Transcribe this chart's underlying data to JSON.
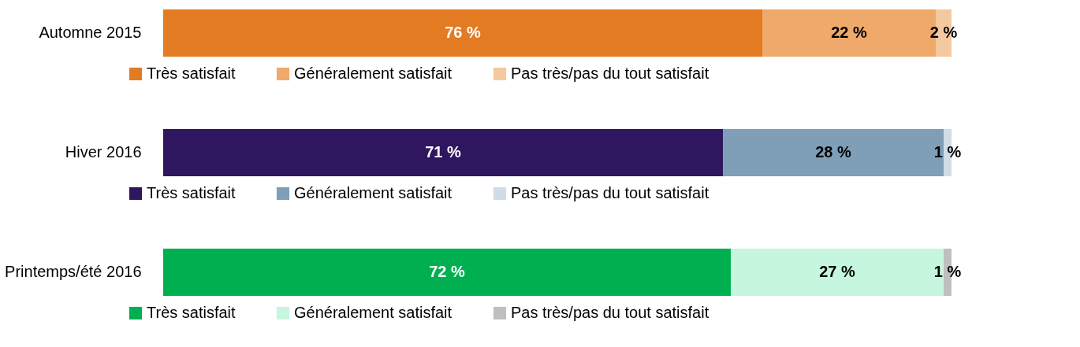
{
  "chart_data": [
    {
      "type": "bar",
      "orientation": "horizontal",
      "stacked": true,
      "categories": [
        "Automne 2015"
      ],
      "xlim": [
        0,
        100
      ],
      "tick_labels": "y",
      "legend": "bottom",
      "series": [
        {
          "name": "Très satisfait",
          "color": "#e37b22",
          "values": [
            76
          ],
          "value_labels": [
            "76 %"
          ]
        },
        {
          "name": "Généralement satisfait",
          "color": "#efa96b",
          "values": [
            22
          ],
          "value_labels": [
            "22 %"
          ]
        },
        {
          "name": "Pas très/pas du tout satisfait",
          "color": "#f5c9a0",
          "values": [
            2
          ],
          "value_labels": [
            "2 %"
          ]
        }
      ]
    },
    {
      "type": "bar",
      "orientation": "horizontal",
      "stacked": true,
      "categories": [
        "Hiver 2016"
      ],
      "xlim": [
        0,
        100
      ],
      "tick_labels": "y",
      "legend": "bottom",
      "series": [
        {
          "name": "Très satisfait",
          "color": "#2e175e",
          "values": [
            71
          ],
          "value_labels": [
            "71 %"
          ]
        },
        {
          "name": "Généralement satisfait",
          "color": "#7f9fb8",
          "values": [
            28
          ],
          "value_labels": [
            "28 %"
          ]
        },
        {
          "name": "Pas très/pas du tout satisfait",
          "color": "#d0dce6",
          "values": [
            1
          ],
          "value_labels": [
            "1 %"
          ]
        }
      ]
    },
    {
      "type": "bar",
      "orientation": "horizontal",
      "stacked": true,
      "categories": [
        "Printemps/été 2016"
      ],
      "xlim": [
        0,
        100
      ],
      "tick_labels": "y",
      "legend": "bottom",
      "series": [
        {
          "name": "Très satisfait",
          "color": "#00b050",
          "values": [
            72
          ],
          "value_labels": [
            "72 %"
          ]
        },
        {
          "name": "Généralement satisfait",
          "color": "#c6f7de",
          "values": [
            27
          ],
          "value_labels": [
            "27 %"
          ]
        },
        {
          "name": "Pas très/pas du tout satisfait",
          "color": "#bfbfbf",
          "values": [
            1
          ],
          "value_labels": [
            "1 %"
          ]
        }
      ]
    }
  ]
}
